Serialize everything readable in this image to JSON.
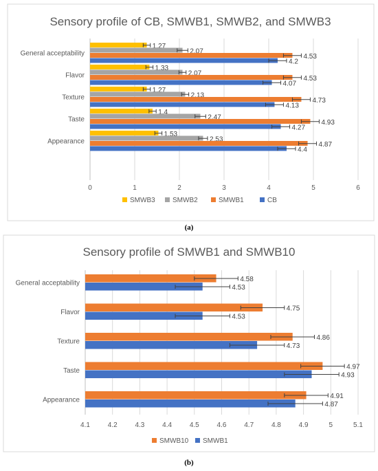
{
  "chart_data": [
    {
      "type": "bar",
      "orientation": "horizontal",
      "title": "Sensory profile of CB, SMWB1, SMWB2, and SMWB3",
      "caption": "(a)",
      "categories": [
        "General acceptability",
        "Flavor",
        "Texture",
        "Taste",
        "Appearance"
      ],
      "xlim": [
        0,
        6
      ],
      "xticks": [
        0,
        1,
        2,
        3,
        4,
        5,
        6
      ],
      "grid": true,
      "error_bars": true,
      "legend_position": "bottom",
      "series": [
        {
          "name": "SMWB3",
          "color": "#FFC000",
          "values": [
            1.27,
            1.33,
            1.27,
            1.4,
            1.53
          ],
          "errors": [
            0.08,
            0.08,
            0.08,
            0.08,
            0.08
          ]
        },
        {
          "name": "SMWB2",
          "color": "#A5A5A5",
          "values": [
            2.07,
            2.07,
            2.13,
            2.47,
            2.53
          ],
          "errors": [
            0.12,
            0.08,
            0.08,
            0.12,
            0.1
          ]
        },
        {
          "name": "SMWB1",
          "color": "#ED7D31",
          "values": [
            4.53,
            4.53,
            4.73,
            4.93,
            4.87
          ],
          "errors": [
            0.2,
            0.2,
            0.2,
            0.2,
            0.2
          ]
        },
        {
          "name": "CB",
          "color": "#4472C4",
          "values": [
            4.2,
            4.07,
            4.13,
            4.27,
            4.4
          ],
          "errors": [
            0.2,
            0.2,
            0.2,
            0.2,
            0.2
          ]
        }
      ]
    },
    {
      "type": "bar",
      "orientation": "horizontal",
      "title": "Sensory profile of SMWB1 and SMWB10",
      "caption": "(b)",
      "categories": [
        "General acceptability",
        "Flavor",
        "Texture",
        "Taste",
        "Appearance"
      ],
      "xlim": [
        4.1,
        5.1
      ],
      "xticks": [
        "4.1",
        "4.2",
        "4.3",
        "4.4",
        "4.5",
        "4.6",
        "4.7",
        "4.8",
        "4.9",
        "5",
        "5.1"
      ],
      "grid": true,
      "error_bars": true,
      "legend_position": "bottom",
      "series": [
        {
          "name": "SMWB10",
          "color": "#ED7D31",
          "values": [
            4.58,
            4.75,
            4.86,
            4.97,
            4.91
          ],
          "errors": [
            0.08,
            0.08,
            0.08,
            0.08,
            0.08
          ]
        },
        {
          "name": "SMWB1",
          "color": "#4472C4",
          "values": [
            4.53,
            4.53,
            4.73,
            4.93,
            4.87
          ],
          "errors": [
            0.1,
            0.1,
            0.1,
            0.1,
            0.1
          ]
        }
      ]
    }
  ]
}
